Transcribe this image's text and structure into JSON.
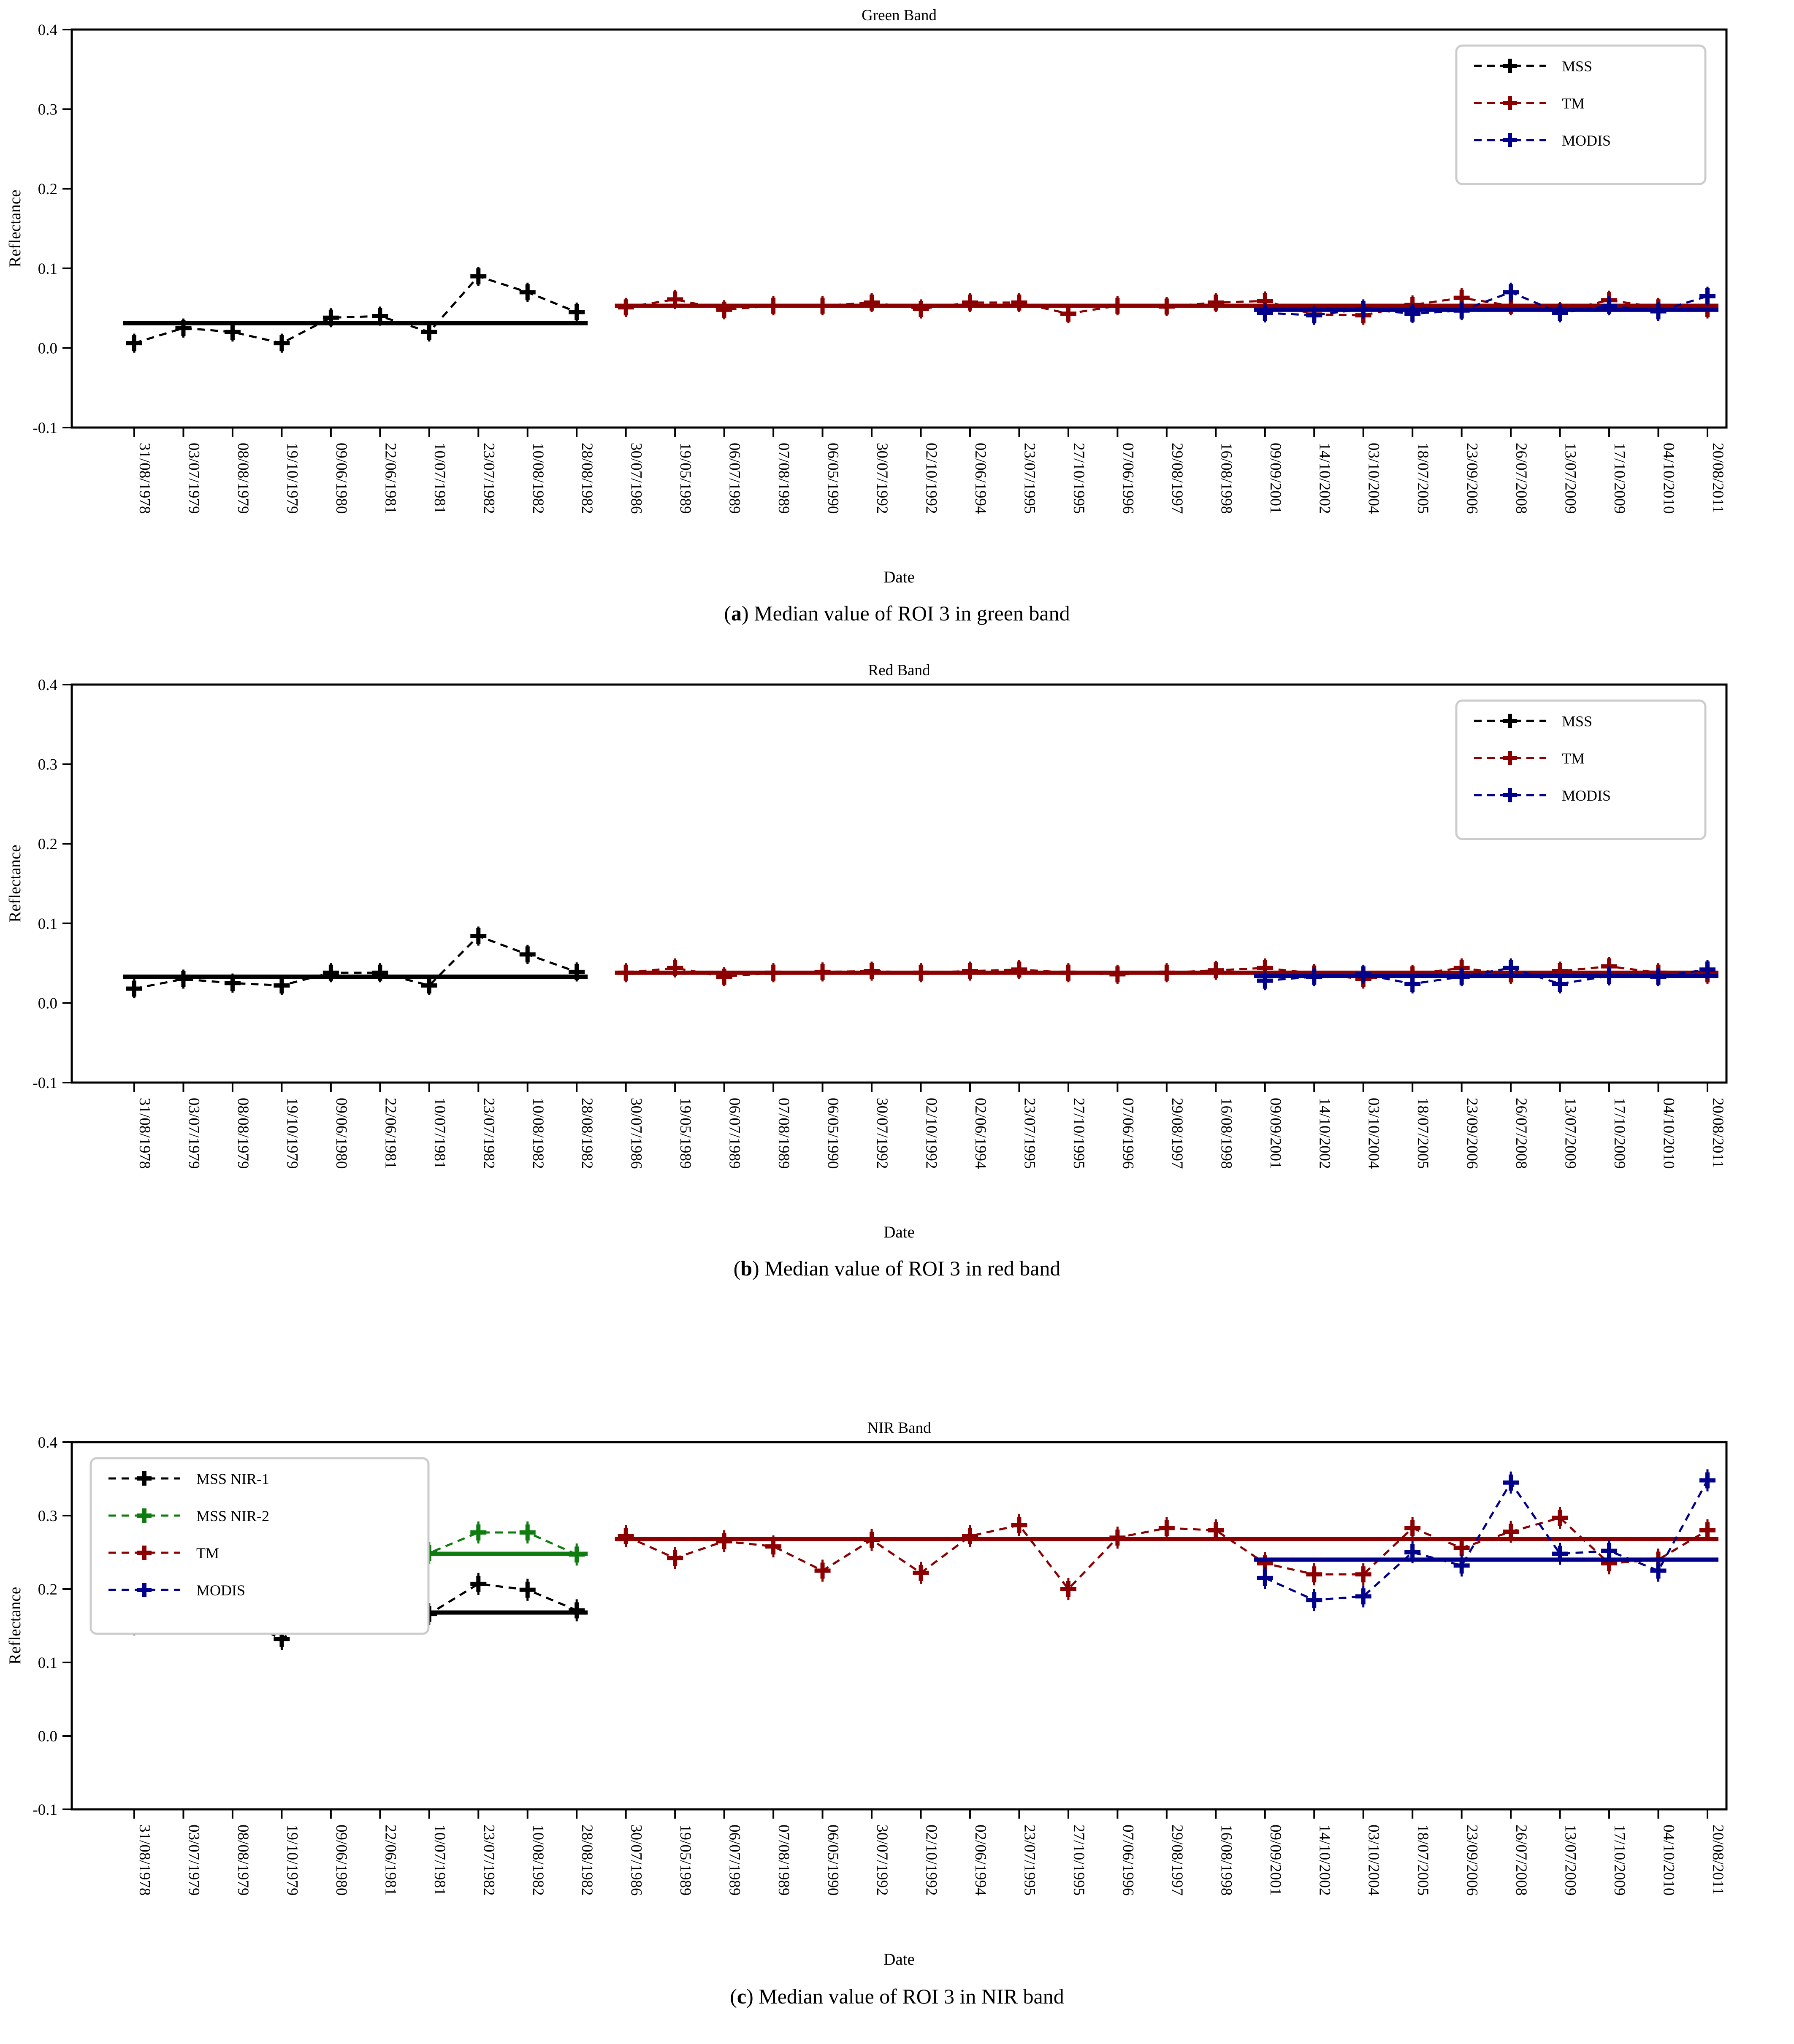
{
  "page": {
    "background": "#ffffff"
  },
  "dates": [
    "31/08/1978",
    "03/07/1979",
    "08/08/1979",
    "19/10/1979",
    "09/06/1980",
    "22/06/1981",
    "10/07/1981",
    "23/07/1982",
    "10/08/1982",
    "28/08/1982",
    "30/07/1986",
    "19/05/1989",
    "06/07/1989",
    "07/08/1989",
    "06/05/1990",
    "30/07/1992",
    "02/10/1992",
    "02/06/1994",
    "23/07/1995",
    "27/10/1995",
    "07/06/1996",
    "29/08/1997",
    "16/08/1998",
    "09/09/2001",
    "14/10/2002",
    "03/10/2004",
    "18/07/2005",
    "23/09/2006",
    "26/07/2008",
    "13/07/2009",
    "17/10/2009",
    "04/10/2010",
    "20/08/2011"
  ],
  "chart_data": [
    {
      "type": "line",
      "id": "green-band",
      "title": "Green Band",
      "xlabel": "Date",
      "ylabel": "Reflectance",
      "ylim": [
        -0.1,
        0.4
      ],
      "yticks": [
        "0.4",
        "0.3",
        "0.2",
        "0.1",
        "0.0",
        "-0.1"
      ],
      "grid": false,
      "legend_position": "top-right",
      "caption": {
        "open_paren": "(",
        "letter": "a",
        "close_paren": ")",
        "text": "Median value of ROI 3 in green band"
      },
      "series": [
        {
          "name": "MSS",
          "color": "#000000",
          "line_style": "dashed",
          "marker": "plus",
          "start_index": 0,
          "error_bar": 0.012,
          "mean_line": 0.031,
          "values": [
            0.006,
            0.025,
            0.02,
            0.006,
            0.038,
            0.04,
            0.02,
            0.09,
            0.07,
            0.045
          ]
        },
        {
          "name": "TM",
          "color": "#8b0000",
          "line_style": "dashed",
          "marker": "plus",
          "start_index": 10,
          "error_bar": 0.012,
          "mean_line": 0.053,
          "values": [
            0.051,
            0.061,
            0.048,
            0.053,
            0.053,
            0.057,
            0.049,
            0.057,
            0.057,
            0.043,
            0.053,
            0.052,
            0.057,
            0.059,
            0.042,
            0.041,
            0.054,
            0.063,
            0.053,
            0.046,
            0.06,
            0.051,
            0.049
          ]
        },
        {
          "name": "MODIS",
          "color": "#00008b",
          "line_style": "dashed",
          "marker": "plus",
          "start_index": 23,
          "error_bar": 0.012,
          "mean_line": 0.048,
          "values": [
            0.044,
            0.041,
            0.049,
            0.043,
            0.047,
            0.07,
            0.044,
            0.053,
            0.046,
            0.065
          ]
        }
      ]
    },
    {
      "type": "line",
      "id": "red-band",
      "title": "Red Band",
      "xlabel": "Date",
      "ylabel": "Reflectance",
      "ylim": [
        -0.1,
        0.4
      ],
      "yticks": [
        "0.4",
        "0.3",
        "0.2",
        "0.1",
        "0.0",
        "-0.1"
      ],
      "grid": false,
      "legend_position": "top-right",
      "caption": {
        "open_paren": "(",
        "letter": "b",
        "close_paren": ")",
        "text": "Median value of ROI 3 in red band"
      },
      "series": [
        {
          "name": "MSS",
          "color": "#000000",
          "line_style": "dashed",
          "marker": "plus",
          "start_index": 0,
          "error_bar": 0.012,
          "mean_line": 0.033,
          "values": [
            0.018,
            0.03,
            0.025,
            0.022,
            0.038,
            0.038,
            0.022,
            0.084,
            0.061,
            0.039
          ]
        },
        {
          "name": "TM",
          "color": "#8b0000",
          "line_style": "dashed",
          "marker": "plus",
          "start_index": 10,
          "error_bar": 0.012,
          "mean_line": 0.038,
          "values": [
            0.038,
            0.044,
            0.033,
            0.038,
            0.039,
            0.04,
            0.038,
            0.04,
            0.042,
            0.038,
            0.036,
            0.038,
            0.041,
            0.044,
            0.037,
            0.03,
            0.036,
            0.044,
            0.036,
            0.04,
            0.046,
            0.038,
            0.036
          ]
        },
        {
          "name": "MODIS",
          "color": "#00008b",
          "line_style": "dashed",
          "marker": "plus",
          "start_index": 23,
          "error_bar": 0.012,
          "mean_line": 0.034,
          "values": [
            0.028,
            0.033,
            0.036,
            0.024,
            0.033,
            0.044,
            0.024,
            0.034,
            0.033,
            0.042
          ]
        }
      ]
    },
    {
      "type": "line",
      "id": "nir-band",
      "title": "NIR Band",
      "xlabel": "Date",
      "ylabel": "Reflectance",
      "ylim": [
        -0.1,
        0.4
      ],
      "yticks": [
        "0.4",
        "0.3",
        "0.2",
        "0.1",
        "0.0",
        "-0.1"
      ],
      "grid": false,
      "legend_position": "top-left",
      "caption": {
        "open_paren": "(",
        "letter": "c",
        "close_paren": ")",
        "text": "Median value of ROI 3 in NIR band"
      },
      "series": [
        {
          "name": "MSS NIR-1",
          "color": "#000000",
          "line_style": "dashed",
          "marker": "plus",
          "start_index": 0,
          "error_bar": 0.015,
          "mean_line": 0.168,
          "values": [
            0.152,
            0.181,
            0.164,
            0.132,
            0.178,
            0.166,
            0.166,
            0.207,
            0.199,
            0.171
          ]
        },
        {
          "name": "MSS NIR-2",
          "color": "#0f7c0f",
          "line_style": "dashed",
          "marker": "plus",
          "start_index": 0,
          "error_bar": 0.015,
          "mean_line": 0.248,
          "values": [
            0.229,
            0.259,
            0.246,
            0.202,
            0.247,
            0.234,
            0.249,
            0.277,
            0.277,
            0.247
          ]
        },
        {
          "name": "TM",
          "color": "#8b0000",
          "line_style": "dashed",
          "marker": "plus",
          "start_index": 10,
          "error_bar": 0.015,
          "mean_line": 0.268,
          "values": [
            0.272,
            0.242,
            0.265,
            0.258,
            0.225,
            0.267,
            0.222,
            0.272,
            0.287,
            0.2,
            0.27,
            0.283,
            0.28,
            0.235,
            0.22,
            0.22,
            0.283,
            0.256,
            0.278,
            0.297,
            0.235,
            0.24,
            0.28
          ]
        },
        {
          "name": "MODIS",
          "color": "#00008b",
          "line_style": "dashed",
          "marker": "plus",
          "start_index": 23,
          "error_bar": 0.015,
          "mean_line": 0.24,
          "values": [
            0.215,
            0.185,
            0.19,
            0.25,
            0.232,
            0.345,
            0.248,
            0.252,
            0.225,
            0.348
          ]
        }
      ]
    }
  ]
}
